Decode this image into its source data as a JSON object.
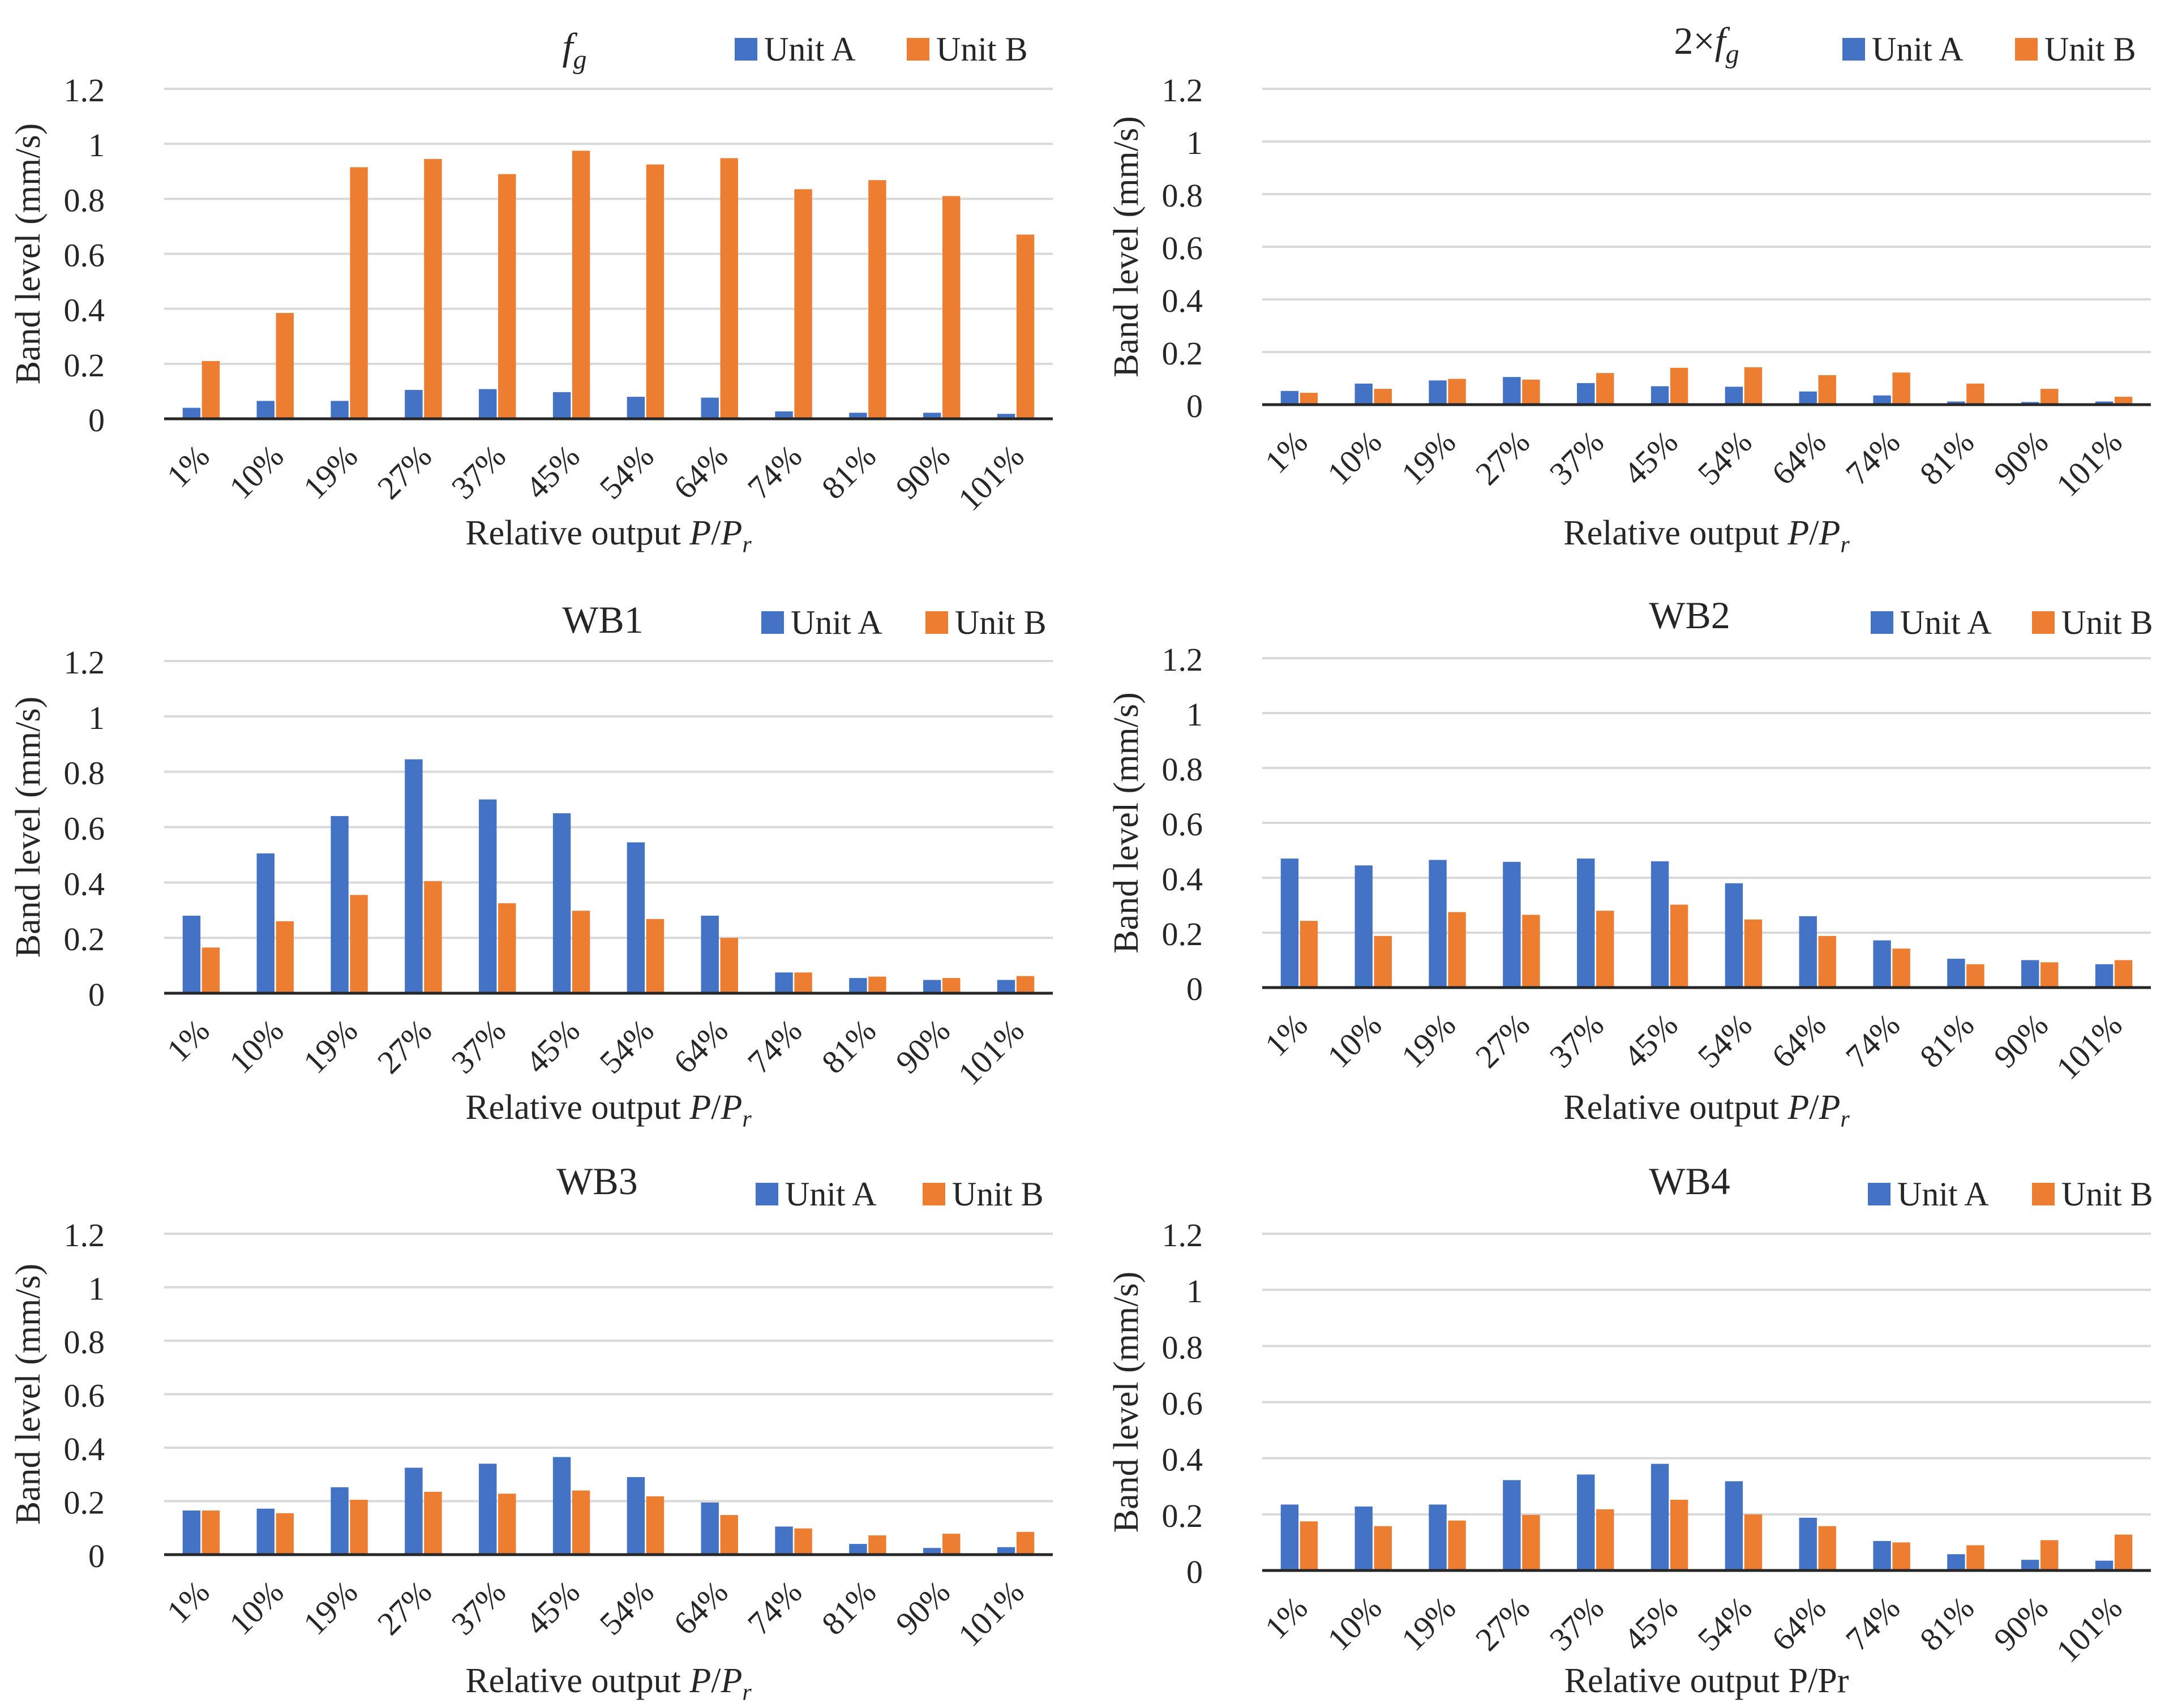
{
  "colors": {
    "unit_a": "#4472C4",
    "unit_b": "#ED7D31",
    "grid": "#D9D9D9",
    "axis": "#262626"
  },
  "chart_data": [
    {
      "type": "bar",
      "title": "f",
      "title_sub": "g",
      "title_prefix": "",
      "xlabel": "Relative output ",
      "xlabel_var": "P",
      "xlabel_sep": "/",
      "xlabel_var2": "P",
      "xlabel_sub": "r",
      "xlabel_plain": "",
      "ylabel": "Band level (mm/s)",
      "ylim": [
        0,
        1.2
      ],
      "yticks": [
        "0",
        "0.2",
        "0.4",
        "0.6",
        "0.8",
        "1",
        "1.2"
      ],
      "categories": [
        "1%",
        "10%",
        "19%",
        "27%",
        "37%",
        "45%",
        "54%",
        "64%",
        "74%",
        "81%",
        "90%",
        "101%"
      ],
      "series": [
        {
          "name": "Unit A",
          "values": [
            0.04,
            0.065,
            0.065,
            0.105,
            0.108,
            0.097,
            0.08,
            0.077,
            0.027,
            0.022,
            0.022,
            0.018
          ]
        },
        {
          "name": "Unit B",
          "values": [
            0.21,
            0.385,
            0.915,
            0.945,
            0.89,
            0.975,
            0.925,
            0.948,
            0.835,
            0.868,
            0.81,
            0.67
          ]
        }
      ]
    },
    {
      "type": "bar",
      "title": "f",
      "title_sub": "g",
      "title_prefix": "2×",
      "xlabel": "Relative output ",
      "xlabel_var": "P",
      "xlabel_sep": "/",
      "xlabel_var2": "P",
      "xlabel_sub": "r",
      "xlabel_plain": "",
      "ylabel": "Band level (mm/s)",
      "ylim": [
        0,
        1.2
      ],
      "yticks": [
        "0",
        "0.2",
        "0.4",
        "0.6",
        "0.8",
        "1",
        "1.2"
      ],
      "categories": [
        "1%",
        "10%",
        "19%",
        "27%",
        "37%",
        "45%",
        "54%",
        "64%",
        "74%",
        "81%",
        "90%",
        "101%"
      ],
      "series": [
        {
          "name": "Unit A",
          "values": [
            0.052,
            0.08,
            0.092,
            0.105,
            0.082,
            0.07,
            0.068,
            0.05,
            0.035,
            0.012,
            0.01,
            0.012
          ]
        },
        {
          "name": "Unit B",
          "values": [
            0.045,
            0.06,
            0.098,
            0.095,
            0.12,
            0.14,
            0.142,
            0.112,
            0.122,
            0.08,
            0.06,
            0.03
          ]
        }
      ]
    },
    {
      "type": "bar",
      "title": "WB1",
      "title_sub": "",
      "title_prefix": "",
      "xlabel": "Relative output ",
      "xlabel_var": "P",
      "xlabel_sep": "/",
      "xlabel_var2": "P",
      "xlabel_sub": "r",
      "xlabel_plain": "",
      "ylabel": "Band level (mm/s)",
      "ylim": [
        0,
        1.2
      ],
      "yticks": [
        "0",
        "0.2",
        "0.4",
        "0.6",
        "0.8",
        "1",
        "1.2"
      ],
      "categories": [
        "1%",
        "10%",
        "19%",
        "27%",
        "37%",
        "45%",
        "54%",
        "64%",
        "74%",
        "81%",
        "90%",
        "101%"
      ],
      "series": [
        {
          "name": "Unit A",
          "values": [
            0.28,
            0.505,
            0.64,
            0.845,
            0.7,
            0.65,
            0.545,
            0.28,
            0.075,
            0.055,
            0.048,
            0.048
          ]
        },
        {
          "name": "Unit B",
          "values": [
            0.165,
            0.26,
            0.355,
            0.405,
            0.325,
            0.298,
            0.268,
            0.2,
            0.075,
            0.06,
            0.055,
            0.062
          ]
        }
      ]
    },
    {
      "type": "bar",
      "title": "WB2",
      "title_sub": "",
      "title_prefix": "",
      "xlabel": "Relative output ",
      "xlabel_var": "P",
      "xlabel_sep": "/",
      "xlabel_var2": "P",
      "xlabel_sub": "r",
      "xlabel_plain": "",
      "ylabel": "Band level (mm/s)",
      "ylim": [
        0,
        1.2
      ],
      "yticks": [
        "0",
        "0.2",
        "0.4",
        "0.6",
        "0.8",
        "1",
        "1.2"
      ],
      "categories": [
        "1%",
        "10%",
        "19%",
        "27%",
        "37%",
        "45%",
        "54%",
        "64%",
        "74%",
        "81%",
        "90%",
        "101%"
      ],
      "series": [
        {
          "name": "Unit A",
          "values": [
            0.47,
            0.445,
            0.465,
            0.458,
            0.47,
            0.46,
            0.38,
            0.26,
            0.172,
            0.105,
            0.1,
            0.085
          ]
        },
        {
          "name": "Unit B",
          "values": [
            0.243,
            0.188,
            0.275,
            0.265,
            0.28,
            0.302,
            0.248,
            0.188,
            0.142,
            0.085,
            0.092,
            0.1
          ]
        }
      ]
    },
    {
      "type": "bar",
      "title": "WB3",
      "title_sub": "",
      "title_prefix": "",
      "xlabel": "Relative output ",
      "xlabel_var": "P",
      "xlabel_sep": "/",
      "xlabel_var2": "P",
      "xlabel_sub": "r",
      "xlabel_plain": "",
      "ylabel": "Band level (mm/s)",
      "ylim": [
        0,
        1.2
      ],
      "yticks": [
        "0",
        "0.2",
        "0.4",
        "0.6",
        "0.8",
        "1",
        "1.2"
      ],
      "categories": [
        "1%",
        "10%",
        "19%",
        "27%",
        "37%",
        "45%",
        "54%",
        "64%",
        "74%",
        "81%",
        "90%",
        "101%"
      ],
      "series": [
        {
          "name": "Unit A",
          "values": [
            0.165,
            0.172,
            0.252,
            0.325,
            0.34,
            0.365,
            0.29,
            0.195,
            0.105,
            0.04,
            0.025,
            0.028
          ]
        },
        {
          "name": "Unit B",
          "values": [
            0.165,
            0.155,
            0.205,
            0.235,
            0.228,
            0.24,
            0.218,
            0.148,
            0.098,
            0.072,
            0.078,
            0.085
          ]
        }
      ]
    },
    {
      "type": "bar",
      "title": "WB4",
      "title_sub": "",
      "title_prefix": "",
      "xlabel": "",
      "xlabel_var": "",
      "xlabel_sep": "",
      "xlabel_var2": "",
      "xlabel_sub": "",
      "xlabel_plain": "Relative output P/Pr",
      "ylabel": "Band level (mm/s)",
      "ylim": [
        0,
        1.2
      ],
      "yticks": [
        "0",
        "0.2",
        "0.4",
        "0.6",
        "0.8",
        "1",
        "1.2"
      ],
      "categories": [
        "1%",
        "10%",
        "19%",
        "27%",
        "37%",
        "45%",
        "54%",
        "64%",
        "74%",
        "81%",
        "90%",
        "101%"
      ],
      "series": [
        {
          "name": "Unit A",
          "values": [
            0.235,
            0.228,
            0.235,
            0.322,
            0.342,
            0.38,
            0.318,
            0.188,
            0.105,
            0.058,
            0.038,
            0.035
          ]
        },
        {
          "name": "Unit B",
          "values": [
            0.175,
            0.158,
            0.178,
            0.198,
            0.218,
            0.252,
            0.2,
            0.158,
            0.1,
            0.09,
            0.108,
            0.128
          ]
        }
      ]
    }
  ]
}
